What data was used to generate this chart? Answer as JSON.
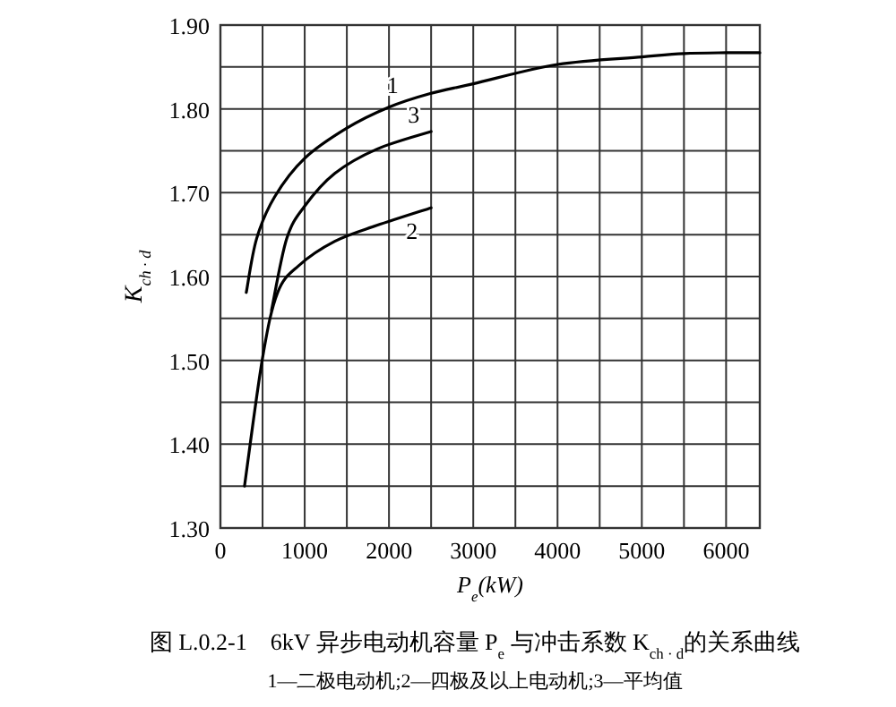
{
  "chart_data": {
    "type": "line",
    "title": "图 L.0.2-1　6kV 异步电动机容量 P$_{e}$ 与冲击系数 K$_{ch · d}$的关系曲线",
    "subtitle": "1—二极电动机;2—四极及以上电动机;3—平均值",
    "xlabel": "P$_{e}$(kW)",
    "ylabel": "K$_{ch · d}$",
    "xlim": [
      0,
      6400
    ],
    "ylim": [
      1.3,
      1.9
    ],
    "xticks": [
      0,
      {
        "value": 500,
        "label": null
      },
      1000,
      {
        "value": 1500,
        "label": null
      },
      2000,
      {
        "value": 2500,
        "label": null
      },
      3000,
      {
        "value": 3500,
        "label": null
      },
      4000,
      {
        "value": 4500,
        "label": null
      },
      5000,
      {
        "value": 5500,
        "label": null
      },
      6000
    ],
    "yticks": [
      {
        "value": 1.3,
        "label": "1.30"
      },
      {
        "value": 1.35,
        "label": null
      },
      {
        "value": 1.4,
        "label": "1.40"
      },
      {
        "value": 1.45,
        "label": null
      },
      {
        "value": 1.5,
        "label": "1.50"
      },
      {
        "value": 1.55,
        "label": null
      },
      {
        "value": 1.6,
        "label": "1.60"
      },
      {
        "value": 1.65,
        "label": null
      },
      {
        "value": 1.7,
        "label": "1.70"
      },
      {
        "value": 1.75,
        "label": null
      },
      {
        "value": 1.8,
        "label": "1.80"
      },
      {
        "value": 1.85,
        "label": null
      },
      {
        "value": 1.9,
        "label": "1.90"
      }
    ],
    "grid": true,
    "marker": "none",
    "line_style": "solid",
    "series": [
      {
        "color": "#000000",
        "x": [
          307,
          429,
          643,
          1000,
          1500,
          2000,
          2480,
          3000,
          4000,
          5000,
          5500,
          6000,
          6400
        ],
        "values": [
          1.581,
          1.645,
          1.695,
          1.741,
          1.777,
          1.802,
          1.818,
          1.83,
          1.853,
          1.862,
          1.866,
          1.867,
          1.867
        ]
      },
      {
        "color": "#000000",
        "x": [
          286,
          500,
          679,
          929,
          1357,
          1857,
          2500
        ],
        "values": [
          1.35,
          1.503,
          1.581,
          1.613,
          1.642,
          1.661,
          1.682
        ]
      },
      {
        "color": "#000000",
        "x": [
          607,
          786,
          1000,
          1357,
          1857,
          2500
        ],
        "values": [
          1.56,
          1.645,
          1.684,
          1.723,
          1.752,
          1.773
        ]
      }
    ],
    "annotations": [
      {
        "text": "1",
        "x": 2000,
        "y": 1.802
      },
      {
        "text": "3",
        "x": 2250,
        "y": 1.767
      },
      {
        "text": "2",
        "x": 2400,
        "y": 1.679
      }
    ]
  }
}
